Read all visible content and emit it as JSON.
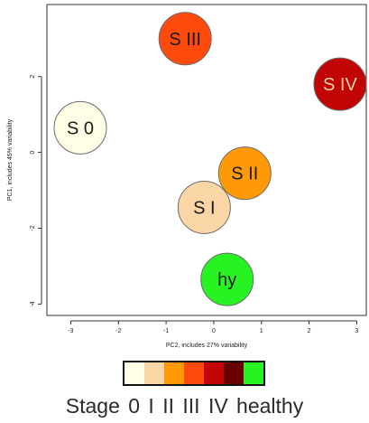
{
  "chart_data": {
    "type": "scatter",
    "xlabel": "PC2, includes 27% variability",
    "ylabel": "PC1, includes 45% variability",
    "xlim": [
      -3.5,
      3.2
    ],
    "ylim": [
      -4.3,
      3.9
    ],
    "x_ticks": [
      -3,
      -2,
      -1,
      0,
      1,
      2,
      3
    ],
    "y_ticks": [
      -4,
      -2,
      0,
      2
    ],
    "points": [
      {
        "label": "S III",
        "x": -0.6,
        "y": 3.0,
        "color": "#ff4a0e",
        "text_color": "#1a1a1a"
      },
      {
        "label": "S IV",
        "x": 2.65,
        "y": 1.8,
        "color": "#c10404",
        "text_color": "#f2d0b0"
      },
      {
        "label": "S 0",
        "x": -2.8,
        "y": 0.65,
        "color": "#fffde6",
        "text_color": "#1a1a1a"
      },
      {
        "label": "S II",
        "x": 0.65,
        "y": -0.55,
        "color": "#ff9a06",
        "text_color": "#1a1a1a"
      },
      {
        "label": "S I",
        "x": -0.2,
        "y": -1.45,
        "color": "#fad5a6",
        "text_color": "#1a1a1a"
      },
      {
        "label": "hy",
        "x": 0.28,
        "y": -3.35,
        "color": "#27f222",
        "text_color": "#1a1a1a"
      }
    ]
  },
  "legend": {
    "colors": [
      "#fffde6",
      "#fad5a6",
      "#ff9a06",
      "#ff4a0e",
      "#c10404",
      "#6a0000",
      "#27f222"
    ],
    "caption": "Stage  0   I  II  III  IV healthy"
  }
}
